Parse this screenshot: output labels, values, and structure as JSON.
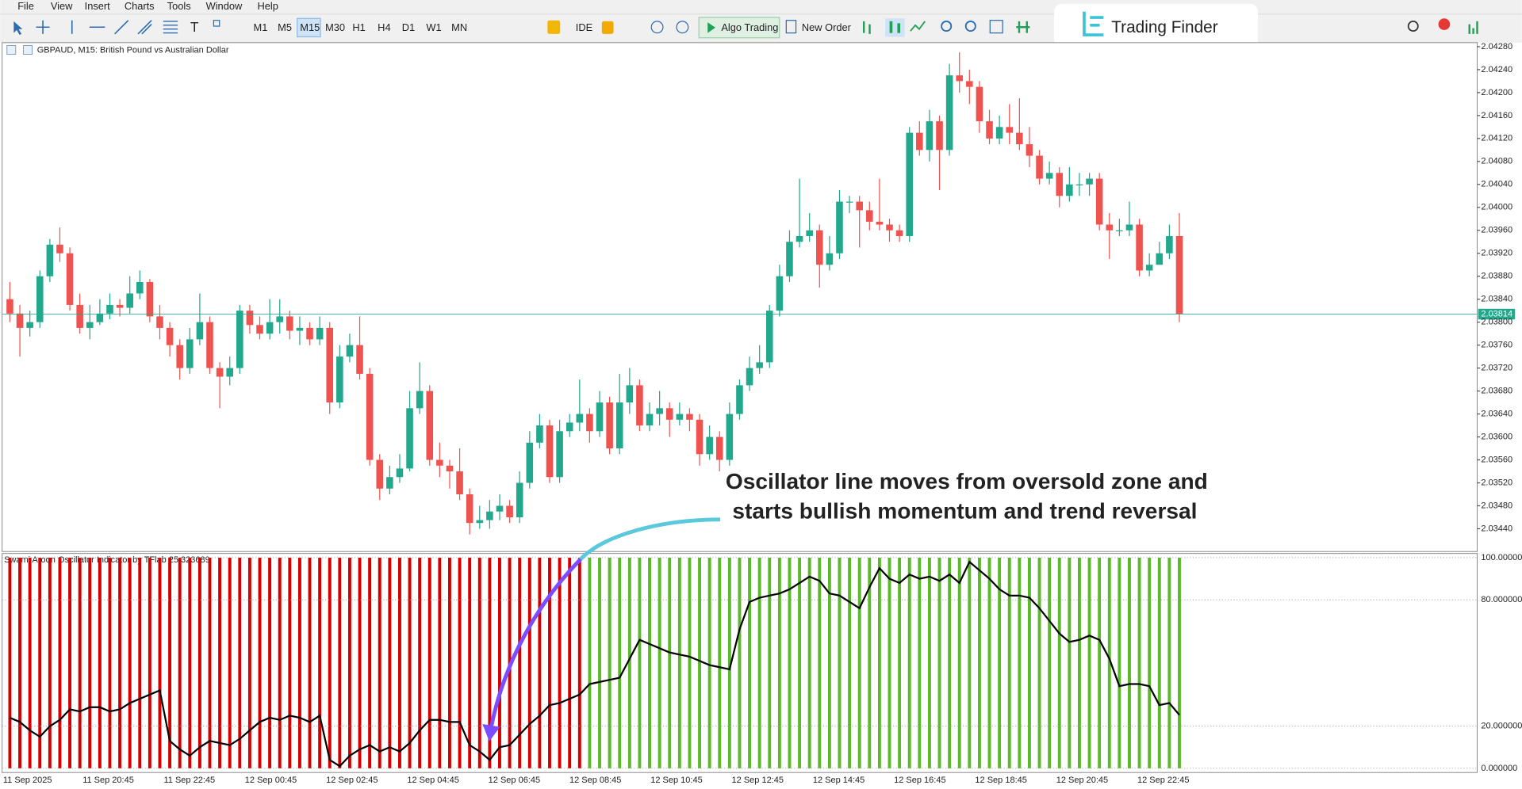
{
  "menu": [
    "File",
    "View",
    "Insert",
    "Charts",
    "Tools",
    "Window",
    "Help"
  ],
  "toolbar": {
    "timeframes": [
      "M1",
      "M5",
      "M15",
      "M30",
      "H1",
      "H4",
      "D1",
      "W1",
      "MN"
    ],
    "active_timeframe": 2,
    "ide": "IDE",
    "algo_trading": "Algo Trading",
    "new_order": "New Order"
  },
  "logo": "Trading Finder",
  "chart_data": [
    {
      "type": "candlestick",
      "title": "GBPAUD, M15:  British Pound vs Australian Dollar",
      "up_color": "#22a88c",
      "down_color": "#ef5350",
      "open": [
        2.0384,
        2.03815,
        2.0379,
        2.038,
        2.0388,
        2.03935,
        2.0392,
        2.0383,
        2.0379,
        2.038,
        2.03815,
        2.0383,
        2.03825,
        2.0385,
        2.0387,
        2.0381,
        2.0379,
        2.0376,
        2.0372,
        2.0377,
        2.038,
        2.0372,
        2.03705,
        2.0372,
        2.0382,
        2.03795,
        2.0378,
        2.038,
        2.0381,
        2.03785,
        2.0379,
        2.0377,
        2.0379,
        2.0366,
        2.0374,
        2.0376,
        2.0371,
        2.0356,
        2.0351,
        2.0353,
        2.03545,
        2.0365,
        2.0368,
        2.0356,
        2.0355,
        2.0354,
        2.035,
        2.0345,
        2.03455,
        2.0347,
        2.0348,
        2.0346,
        2.0352,
        2.0359,
        2.0362,
        2.0353,
        2.0361,
        2.03625,
        2.0364,
        2.0361,
        2.0366,
        2.0358,
        2.0366,
        2.0369,
        2.0362,
        2.0364,
        2.0365,
        2.0363,
        2.0364,
        2.0363,
        2.0357,
        2.036,
        2.0356,
        2.0364,
        2.0369,
        2.0372,
        2.0373,
        2.0382,
        2.0388,
        2.0394,
        2.0395,
        2.0396,
        2.039,
        2.0392,
        2.0401,
        2.0401,
        2.03995,
        2.03975,
        2.0397,
        2.0396,
        2.0395,
        2.0413,
        2.041,
        2.0415,
        2.041,
        2.0423,
        2.0422,
        2.0421,
        2.0415,
        2.0412,
        2.0414,
        2.0413,
        2.0411,
        2.0409,
        2.0405,
        2.0406,
        2.0402,
        2.0404,
        2.0404,
        2.0405,
        2.0397,
        2.0396,
        2.0396,
        2.0397,
        2.0389,
        2.039,
        2.0392,
        2.0395
      ],
      "high": [
        2.0387,
        2.0383,
        2.0382,
        2.0389,
        2.03945,
        2.03965,
        2.0393,
        2.0385,
        2.0383,
        2.0384,
        2.0385,
        2.0384,
        2.0388,
        2.0389,
        2.03875,
        2.0383,
        2.038,
        2.0377,
        2.0379,
        2.0385,
        2.0381,
        2.0373,
        2.0374,
        2.0383,
        2.0383,
        2.0381,
        2.0384,
        2.0384,
        2.0382,
        2.0381,
        2.038,
        2.0381,
        2.038,
        2.0376,
        2.0378,
        2.0381,
        2.0372,
        2.0357,
        2.0355,
        2.0357,
        2.0368,
        2.0373,
        2.0369,
        2.0359,
        2.0356,
        2.0358,
        2.0351,
        2.0348,
        2.0349,
        2.035,
        2.0349,
        2.0354,
        2.0361,
        2.0364,
        2.0363,
        2.0363,
        2.0364,
        2.037,
        2.0365,
        2.0368,
        2.0367,
        2.0371,
        2.0372,
        2.037,
        2.0366,
        2.0368,
        2.0366,
        2.0366,
        2.0365,
        2.0364,
        2.0362,
        2.0361,
        2.0366,
        2.037,
        2.0374,
        2.0376,
        2.0383,
        2.039,
        2.0396,
        2.0405,
        2.0399,
        2.0397,
        2.0395,
        2.0403,
        2.0402,
        2.0402,
        2.0401,
        2.0405,
        2.0398,
        2.0397,
        2.0414,
        2.0415,
        2.0417,
        2.0416,
        2.0425,
        2.0427,
        2.0424,
        2.0422,
        2.0417,
        2.0416,
        2.0418,
        2.0419,
        2.0414,
        2.041,
        2.0408,
        2.0407,
        2.0407,
        2.0406,
        2.0406,
        2.0406,
        2.0399,
        2.0398,
        2.0401,
        2.0398,
        2.0392,
        2.0394,
        2.0397,
        2.0399
      ],
      "low": [
        2.038,
        2.0374,
        2.03775,
        2.0379,
        2.0387,
        2.03905,
        2.0382,
        2.0378,
        2.0377,
        2.03795,
        2.03805,
        2.0381,
        2.03815,
        2.0384,
        2.038,
        2.0377,
        2.0374,
        2.037,
        2.0371,
        2.0376,
        2.0371,
        2.0365,
        2.0369,
        2.0371,
        2.0378,
        2.0377,
        2.0377,
        2.0378,
        2.0377,
        2.0376,
        2.0376,
        2.0376,
        2.0364,
        2.0365,
        2.0373,
        2.037,
        2.0355,
        2.0349,
        2.035,
        2.0352,
        2.0354,
        2.0364,
        2.0355,
        2.0353,
        2.0351,
        2.0349,
        2.0343,
        2.0344,
        2.0344,
        2.03455,
        2.0345,
        2.0345,
        2.0351,
        2.0358,
        2.0352,
        2.0352,
        2.036,
        2.0361,
        2.0359,
        2.036,
        2.0357,
        2.0357,
        2.0364,
        2.0361,
        2.0361,
        2.0362,
        2.036,
        2.0362,
        2.0361,
        2.0355,
        2.0356,
        2.0354,
        2.0355,
        2.0363,
        2.0368,
        2.0371,
        2.0372,
        2.0381,
        2.0387,
        2.0393,
        2.0394,
        2.0386,
        2.0389,
        2.0391,
        2.0399,
        2.0393,
        2.0396,
        2.0396,
        2.0394,
        2.0394,
        2.0394,
        2.0409,
        2.0408,
        2.0403,
        2.0409,
        2.042,
        2.0418,
        2.0413,
        2.0411,
        2.0411,
        2.0411,
        2.041,
        2.0407,
        2.0404,
        2.0404,
        2.04,
        2.0401,
        2.0402,
        2.0402,
        2.0396,
        2.0391,
        2.0395,
        2.0395,
        2.0388,
        2.0388,
        2.039,
        2.0391,
        2.038
      ],
      "close": [
        2.03815,
        2.0379,
        2.038,
        2.0388,
        2.03935,
        2.0392,
        2.0383,
        2.0379,
        2.038,
        2.03815,
        2.0383,
        2.03825,
        2.0385,
        2.0387,
        2.0381,
        2.0379,
        2.0376,
        2.0372,
        2.0377,
        2.038,
        2.0372,
        2.03705,
        2.0372,
        2.0382,
        2.03795,
        2.0378,
        2.038,
        2.0381,
        2.03785,
        2.0379,
        2.0377,
        2.0379,
        2.0366,
        2.0374,
        2.0376,
        2.0371,
        2.0356,
        2.0351,
        2.0353,
        2.03545,
        2.0365,
        2.0368,
        2.0356,
        2.0355,
        2.0354,
        2.035,
        2.0345,
        2.03455,
        2.0347,
        2.0348,
        2.0346,
        2.0352,
        2.0359,
        2.0362,
        2.0353,
        2.0361,
        2.03625,
        2.0364,
        2.0361,
        2.0366,
        2.0358,
        2.0366,
        2.0369,
        2.0362,
        2.0364,
        2.0365,
        2.0363,
        2.0364,
        2.0363,
        2.0357,
        2.036,
        2.0356,
        2.0364,
        2.0369,
        2.0372,
        2.0373,
        2.0382,
        2.0388,
        2.0394,
        2.0395,
        2.0396,
        2.039,
        2.0392,
        2.0401,
        2.0401,
        2.03995,
        2.03975,
        2.0397,
        2.0396,
        2.0395,
        2.0413,
        2.041,
        2.0415,
        2.041,
        2.0423,
        2.0422,
        2.0421,
        2.0415,
        2.0412,
        2.0414,
        2.0413,
        2.0411,
        2.0409,
        2.0405,
        2.0406,
        2.0402,
        2.0404,
        2.0404,
        2.0405,
        2.0397,
        2.0396,
        2.0396,
        2.0397,
        2.0389,
        2.039,
        2.0392,
        2.0395,
        2.03814
      ],
      "ylim": [
        2.03402,
        2.04287
      ],
      "yticks": [
        {
          "value": 2.0428,
          "label": "2.04280"
        },
        {
          "value": 2.0424,
          "label": "2.04240"
        },
        {
          "value": 2.042,
          "label": "2.04200"
        },
        {
          "value": 2.0416,
          "label": "2.04160"
        },
        {
          "value": 2.0412,
          "label": "2.04120"
        },
        {
          "value": 2.0408,
          "label": "2.04080"
        },
        {
          "value": 2.0404,
          "label": "2.04040"
        },
        {
          "value": 2.04,
          "label": "2.04000"
        },
        {
          "value": 2.0396,
          "label": "2.03960"
        },
        {
          "value": 2.0392,
          "label": "2.03920"
        },
        {
          "value": 2.0388,
          "label": "2.03880"
        },
        {
          "value": 2.0384,
          "label": "2.03840"
        },
        {
          "value": 2.038,
          "label": "2.03800"
        },
        {
          "value": 2.0376,
          "label": "2.03760"
        },
        {
          "value": 2.0372,
          "label": "2.03720"
        },
        {
          "value": 2.0368,
          "label": "2.03680"
        },
        {
          "value": 2.0364,
          "label": "2.03640"
        },
        {
          "value": 2.036,
          "label": "2.03600"
        },
        {
          "value": 2.0356,
          "label": "2.03560"
        },
        {
          "value": 2.0352,
          "label": "2.03520"
        },
        {
          "value": 2.0348,
          "label": "2.03480"
        },
        {
          "value": 2.0344,
          "label": "2.03440"
        }
      ],
      "current_price": 2.03814,
      "current_price_color": "#22a88c",
      "annotation": [
        "Oscillator line moves from oversold zone and",
        "starts bullish momentum and trend reversal"
      ]
    },
    {
      "type": "oscillator",
      "title": "Swami Aroon Oscillator Indicator by TFlab 25.323689",
      "color": "#000000",
      "values": [
        24,
        22,
        18,
        15,
        20,
        23,
        28,
        27,
        29,
        29,
        27,
        28,
        31,
        33,
        35,
        37,
        13,
        9,
        6,
        10,
        13,
        12,
        11,
        14,
        18,
        22,
        24,
        23,
        25,
        24,
        22,
        25,
        4,
        1,
        6,
        9,
        11,
        8,
        10,
        8,
        12,
        18,
        23,
        23,
        22,
        22,
        11,
        8,
        4,
        10,
        11,
        16,
        21,
        25,
        30,
        31,
        33,
        35,
        40,
        41,
        42,
        43,
        52,
        61,
        59,
        57,
        55,
        54,
        53,
        51,
        49,
        48,
        47,
        66,
        79,
        81,
        82,
        83,
        85,
        88,
        91,
        89,
        83,
        82,
        79,
        76,
        86,
        95,
        90,
        88,
        92,
        90,
        91,
        89,
        92,
        88,
        98,
        94,
        90,
        85,
        82,
        82,
        81,
        76,
        70,
        64,
        60,
        61,
        63,
        61,
        52,
        39,
        40,
        40,
        39,
        30,
        31,
        25.323689
      ],
      "histogram": {
        "values": [
          100,
          100,
          100,
          100,
          100,
          100,
          100,
          100,
          100,
          100,
          100,
          100,
          100,
          100,
          100,
          100,
          100,
          100,
          100,
          100,
          100,
          100,
          100,
          100,
          100,
          100,
          100,
          100,
          100,
          100,
          100,
          100,
          100,
          100,
          100,
          100,
          100,
          100,
          100,
          100,
          100,
          100,
          100,
          100,
          100,
          100,
          100,
          100,
          100,
          100,
          100,
          100,
          100,
          100,
          100,
          100,
          100,
          100,
          100,
          100,
          100,
          100,
          100,
          100,
          100,
          100,
          100,
          100,
          100,
          100,
          100,
          100,
          100,
          100,
          100,
          100,
          100,
          100,
          100,
          100,
          100,
          100,
          100,
          100,
          100,
          100,
          100,
          100,
          100,
          100,
          100,
          100,
          100,
          100,
          100,
          100,
          100,
          100,
          100,
          100,
          100,
          100,
          100,
          100,
          100,
          100,
          100,
          100,
          100,
          100,
          100,
          100,
          100,
          100,
          100,
          100,
          100,
          100
        ],
        "colors": [
          "#d40000",
          "#d40000",
          "#d40000",
          "#d40000",
          "#d40000",
          "#d40000",
          "#d40000",
          "#d40000",
          "#d40000",
          "#d40000",
          "#d40000",
          "#d40000",
          "#d40000",
          "#d40000",
          "#d40000",
          "#d40000",
          "#d40000",
          "#d40000",
          "#d40000",
          "#d40000",
          "#d40000",
          "#d40000",
          "#d40000",
          "#d40000",
          "#d40000",
          "#d40000",
          "#d40000",
          "#d40000",
          "#d40000",
          "#d40000",
          "#d40000",
          "#d40000",
          "#d40000",
          "#d40000",
          "#d40000",
          "#d40000",
          "#d40000",
          "#d40000",
          "#d40000",
          "#d40000",
          "#d40000",
          "#d40000",
          "#d40000",
          "#d40000",
          "#d40000",
          "#d40000",
          "#d40000",
          "#d40000",
          "#d40000",
          "#d40000",
          "#d40000",
          "#d40000",
          "#d40000",
          "#d40000",
          "#d40000",
          "#d40000",
          "#d40000",
          "#d40000",
          "#5cb82c",
          "#5cb82c",
          "#5cb82c",
          "#5cb82c",
          "#5cb82c",
          "#5cb82c",
          "#5cb82c",
          "#5cb82c",
          "#5cb82c",
          "#5cb82c",
          "#5cb82c",
          "#5cb82c",
          "#5cb82c",
          "#5cb82c",
          "#5cb82c",
          "#5cb82c",
          "#5cb82c",
          "#5cb82c",
          "#5cb82c",
          "#5cb82c",
          "#5cb82c",
          "#5cb82c",
          "#5cb82c",
          "#5cb82c",
          "#5cb82c",
          "#5cb82c",
          "#5cb82c",
          "#5cb82c",
          "#5cb82c",
          "#5cb82c",
          "#5cb82c",
          "#5cb82c",
          "#5cb82c",
          "#5cb82c",
          "#5cb82c",
          "#5cb82c",
          "#5cb82c",
          "#5cb82c",
          "#5cb82c",
          "#5cb82c",
          "#5cb82c",
          "#5cb82c",
          "#5cb82c",
          "#5cb82c",
          "#5cb82c",
          "#5cb82c",
          "#5cb82c",
          "#5cb82c",
          "#5cb82c",
          "#5cb82c",
          "#5cb82c",
          "#5cb82c",
          "#5cb82c",
          "#5cb82c",
          "#5cb82c",
          "#5cb82c",
          "#5cb82c",
          "#5cb82c",
          "#5cb82c",
          "#5cb82c"
        ]
      },
      "ylim": [
        -2,
        102
      ],
      "yticks": [
        {
          "value": 100,
          "label": "100.000000"
        },
        {
          "value": 80,
          "label": "80.000000"
        },
        {
          "value": 20,
          "label": "20.000000"
        },
        {
          "value": 0,
          "label": "0.000000"
        }
      ],
      "xticks": [
        "11 Sep 2025",
        "11 Sep 20:45",
        "11 Sep 22:45",
        "12 Sep 00:45",
        "12 Sep 02:45",
        "12 Sep 04:45",
        "12 Sep 06:45",
        "12 Sep 08:45",
        "12 Sep 10:45",
        "12 Sep 12:45",
        "12 Sep 14:45",
        "12 Sep 16:45",
        "12 Sep 18:45",
        "12 Sep 20:45",
        "12 Sep 22:45"
      ]
    }
  ]
}
